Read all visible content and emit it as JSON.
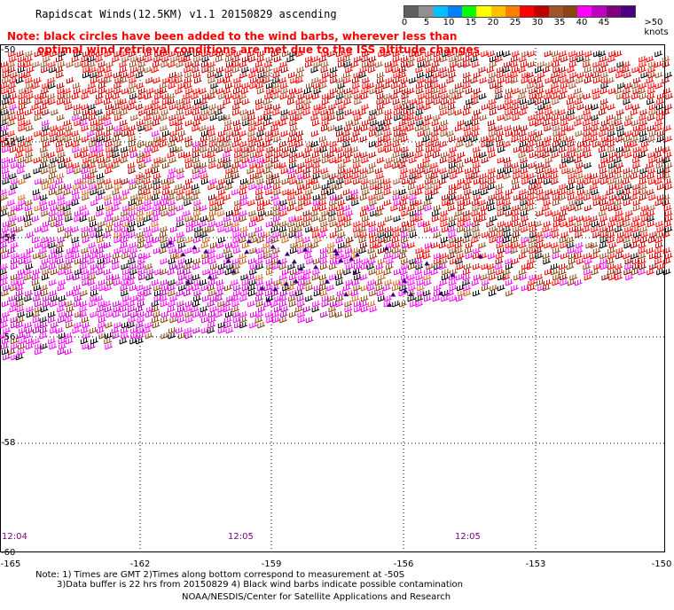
{
  "header": {
    "title": "Rapidscat Winds(12.5KM) v1.1 20150829 ascending",
    "note_line1": "Note: black circles have been added to the wind barbs, wherever less than",
    "note_line2": "optimal wind retrieval conditions are met due to the ISS altitude changes"
  },
  "legend": {
    "ticks": [
      "0",
      "5",
      "10",
      "15",
      "20",
      "25",
      "30",
      "35",
      "40",
      "45",
      ">50 knots"
    ],
    "colors": [
      "#606060",
      "#909090",
      "#00c0ff",
      "#0080ff",
      "#00ff00",
      "#ffff00",
      "#ffc000",
      "#ff8000",
      "#ff0000",
      "#c00000",
      "#a0522d",
      "#8b4513",
      "#ff00ff",
      "#c000c0",
      "#800080",
      "#4b0082"
    ]
  },
  "map": {
    "lat_labels": [
      "-50",
      "-52",
      "-54",
      "-56",
      "-58",
      "-60"
    ],
    "lon_labels": [
      "-165",
      "-162",
      "-159",
      "-156",
      "-153",
      "-150"
    ],
    "times": [
      "12:04",
      "12:05",
      "12:05"
    ],
    "barb_colors": [
      "#ff0000",
      "#c00000",
      "#8b4513",
      "#d2691e",
      "#a0522d",
      "#ff00ff",
      "#c000c0",
      "#800000",
      "#000000",
      "#800080"
    ]
  },
  "footer": {
    "notes_line1": "Note: 1) Times are GMT 2)Times along bottom correspond to measurement at -50S",
    "notes_line2": "3)Data buffer is 22 hrs from 20150829 4) Black wind barbs indicate possible contamination",
    "credit": "NOAA/NESDIS/Center for Satellite Applications and Research"
  }
}
